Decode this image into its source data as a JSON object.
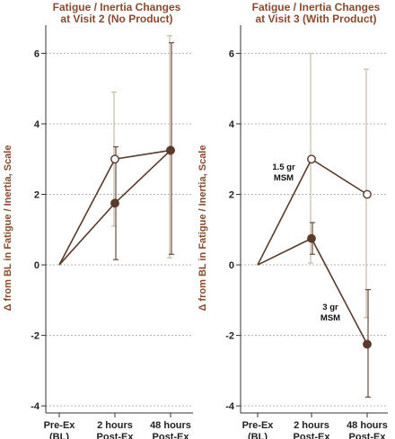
{
  "chart_data": [
    {
      "type": "line",
      "title_lines": [
        "Fatigue / Inertia Changes",
        "at Visit 2 (No Product)"
      ],
      "ylabel": "Δ from BL in Fatigue / Inertia, Scale",
      "categories": [
        [
          "Pre-Ex",
          "(BL)"
        ],
        [
          "2 hours",
          "Post-Ex"
        ],
        [
          "48 hours",
          "Post-Ex"
        ]
      ],
      "yticks": [
        -4,
        -2,
        0,
        2,
        4,
        6
      ],
      "ylim": [
        -4.2,
        6.8
      ],
      "grid": true,
      "series": [
        {
          "marker": "open-circle",
          "values": [
            0,
            3.0,
            3.25
          ],
          "error_low": [
            null,
            1.1,
            0.2
          ],
          "error_high": [
            null,
            4.9,
            6.5
          ]
        },
        {
          "marker": "filled-circle",
          "values": [
            0,
            1.75,
            3.25
          ],
          "error_low": [
            null,
            0.15,
            0.3
          ],
          "error_high": [
            null,
            3.35,
            6.3
          ]
        }
      ],
      "annotations": []
    },
    {
      "type": "line",
      "title_lines": [
        "Fatigue / Inertia Changes",
        "at Visit 3 (With Product)"
      ],
      "ylabel": "Δ from BL in Fatigue / Inertia, Scale",
      "categories": [
        [
          "Pre-Ex",
          "(BL)"
        ],
        [
          "2 hours",
          "Post-Ex"
        ],
        [
          "48 hours",
          "Post-Ex"
        ]
      ],
      "yticks": [
        -4,
        -2,
        0,
        2,
        4,
        6
      ],
      "ylim": [
        -4.2,
        6.8
      ],
      "grid": true,
      "series": [
        {
          "marker": "open-circle",
          "values": [
            0,
            3.0,
            2.0
          ],
          "error_low": [
            null,
            0.05,
            -1.5
          ],
          "error_high": [
            null,
            6.0,
            5.55
          ]
        },
        {
          "marker": "filled-circle",
          "values": [
            0,
            0.75,
            -2.25
          ],
          "error_low": [
            null,
            0.3,
            -3.75
          ],
          "error_high": [
            null,
            1.2,
            -0.7
          ]
        }
      ],
      "annotations": [
        {
          "lines": [
            "1.5 gr",
            "MSM"
          ],
          "anchor_category": 1,
          "anchor_value": 2.75
        },
        {
          "lines": [
            "3 gr",
            "MSM"
          ],
          "anchor_category": 1,
          "anchor_value": -1.5
        }
      ]
    }
  ],
  "colors": {
    "line": "#5a3a2a",
    "error_light": "#c9b9a8",
    "error_dark": "#6a4a3a",
    "grid": "#b0b0b0",
    "axis": "#333333",
    "title": "#8a4a2e",
    "marker_fill": "#5a3a2a"
  }
}
